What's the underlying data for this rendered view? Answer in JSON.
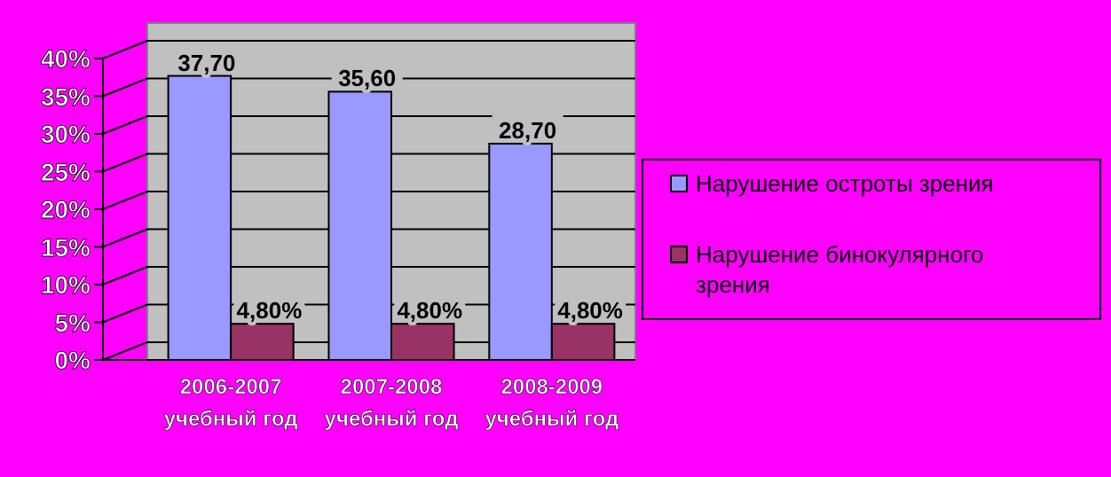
{
  "chart_data": {
    "type": "bar",
    "categories": [
      "2006-2007 учебный год",
      "2007-2008 учебный год",
      "2008-2009 учебный год"
    ],
    "series": [
      {
        "name": "Нарушение остроты зрения",
        "color": "#9999ff",
        "values": [
          37.7,
          35.6,
          28.7
        ],
        "value_labels": [
          "37,70",
          "35,60",
          "28,70"
        ]
      },
      {
        "name": "Нарушение бинокулярного зрения",
        "color": "#993366",
        "values": [
          4.8,
          4.8,
          4.8
        ],
        "value_labels": [
          "4,80%",
          "4,80%",
          "4,80%"
        ]
      }
    ],
    "ylim": [
      0,
      40
    ],
    "yticks": [
      {
        "value": 0,
        "label": "0%"
      },
      {
        "value": 5,
        "label": "5%"
      },
      {
        "value": 10,
        "label": "10%"
      },
      {
        "value": 15,
        "label": "15%"
      },
      {
        "value": 20,
        "label": "20%"
      },
      {
        "value": 25,
        "label": "25%"
      },
      {
        "value": 30,
        "label": "30%"
      },
      {
        "value": 35,
        "label": "35%"
      },
      {
        "value": 40,
        "label": "40%"
      }
    ],
    "grid": "y",
    "legend": "right"
  }
}
